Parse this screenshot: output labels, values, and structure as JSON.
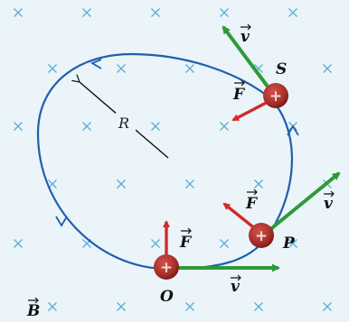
{
  "labels": {
    "radius": "R",
    "field": "B",
    "point_o": "O",
    "point_p": "P",
    "point_s": "S",
    "force": "F",
    "velocity": "v"
  },
  "colors": {
    "background": "#eaf4f9",
    "field_cross": "#5aaed6",
    "orbit": "#1f5faa",
    "force_arrow": "#d42a2a",
    "velocity_arrow": "#2e9a3a",
    "charge": "#a8302a"
  },
  "charges": [
    {
      "name": "O",
      "sign": "+"
    },
    {
      "name": "P",
      "sign": "+"
    },
    {
      "name": "S",
      "sign": "+"
    }
  ],
  "field_symbol": "×"
}
